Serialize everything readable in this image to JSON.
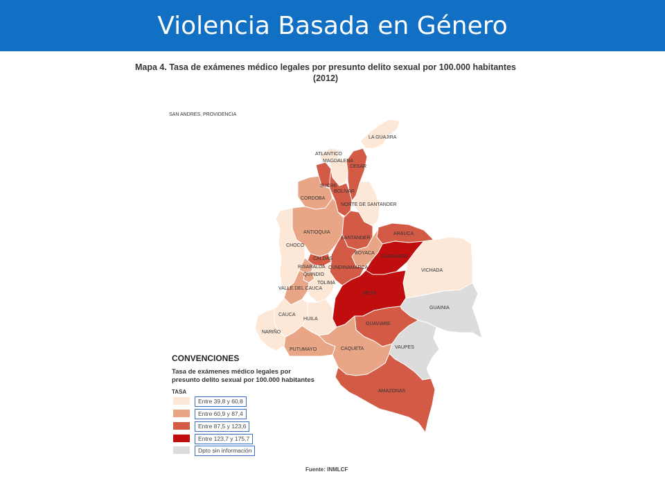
{
  "header": {
    "title": "Violencia Basada en Género",
    "color": "#1170c3"
  },
  "map": {
    "title_line1": "Mapa 4. Tasa de exámenes médico legales por presunto delito sexual por 100.000 habitantes",
    "title_line2": "(2012)",
    "inset_label": "SAN ANDRES, PROVIDENCIA",
    "source": "Fuente: INMLCF",
    "regions": [
      {
        "name": "LA GUAJIRA",
        "class": 0
      },
      {
        "name": "ATLANTICO",
        "class": 0
      },
      {
        "name": "MAGDALENA",
        "class": 0
      },
      {
        "name": "CESAR",
        "class": 2
      },
      {
        "name": "SUCRE",
        "class": 2
      },
      {
        "name": "BOLIVAR",
        "class": 2
      },
      {
        "name": "CORDOBA",
        "class": 1
      },
      {
        "name": "NORTE DE SANTANDER",
        "class": 0
      },
      {
        "name": "ANTIOQUIA",
        "class": 1
      },
      {
        "name": "CHOCO",
        "class": 0
      },
      {
        "name": "SANTANDER",
        "class": 2
      },
      {
        "name": "ARAUCA",
        "class": 2
      },
      {
        "name": "BOYACA",
        "class": 1
      },
      {
        "name": "CASANARE",
        "class": 3
      },
      {
        "name": "VICHADA",
        "class": 0
      },
      {
        "name": "CALDAS",
        "class": 2
      },
      {
        "name": "RISARALDA",
        "class": 1
      },
      {
        "name": "QUINDIO",
        "class": 1
      },
      {
        "name": "CUNDINAMARCA",
        "class": 2
      },
      {
        "name": "VALLE DEL CAUCA",
        "class": 1
      },
      {
        "name": "TOLIMA",
        "class": 0
      },
      {
        "name": "META",
        "class": 3
      },
      {
        "name": "GUAINIA",
        "class": 4
      },
      {
        "name": "CAUCA",
        "class": 0
      },
      {
        "name": "HUILA",
        "class": 0
      },
      {
        "name": "GUAVIARE",
        "class": 2
      },
      {
        "name": "NARIÑO",
        "class": 0
      },
      {
        "name": "PUTUMAYO",
        "class": 1
      },
      {
        "name": "CAQUETA",
        "class": 1
      },
      {
        "name": "VAUPES",
        "class": 4
      },
      {
        "name": "AMAZONAS",
        "class": 2
      }
    ]
  },
  "legend": {
    "title": "CONVENCIONES",
    "subtitle_line1": "Tasa de exámenes médico legales por",
    "subtitle_line2": "presunto delito sexual por 100.000 habitantes",
    "tasa": "TASA",
    "items": [
      {
        "label": "Entre 39,8 y 60,8",
        "color": "#fde8d8"
      },
      {
        "label": "Entre 60,9 y 87,4",
        "color": "#e8a687"
      },
      {
        "label": "Entre 87,5 y 123,6",
        "color": "#d35a45"
      },
      {
        "label": "Entre 123,7 y 175,7",
        "color": "#c00d0d"
      },
      {
        "label": "Dpto sin información",
        "color": "#dcdcdc"
      }
    ]
  }
}
